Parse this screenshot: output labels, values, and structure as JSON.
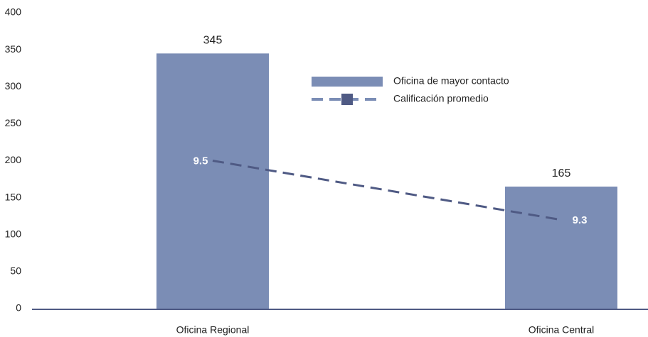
{
  "chart_data": {
    "type": "bar+line",
    "categories": [
      "Oficina Regional",
      "Oficina Central"
    ],
    "series": [
      {
        "name": "Oficina de mayor contacto",
        "type": "bar",
        "color": "#7b8db5",
        "values": [
          345,
          165
        ]
      },
      {
        "name": "Calificación promedio",
        "type": "line",
        "axis": "y2",
        "color": "#4f5a84",
        "values": [
          9.5,
          9.3
        ]
      }
    ],
    "ylim": [
      0,
      400
    ],
    "yticks": [
      0,
      50,
      100,
      150,
      200,
      250,
      300,
      350,
      400
    ],
    "y2lim": [
      9,
      10
    ],
    "legend": "top-right"
  }
}
